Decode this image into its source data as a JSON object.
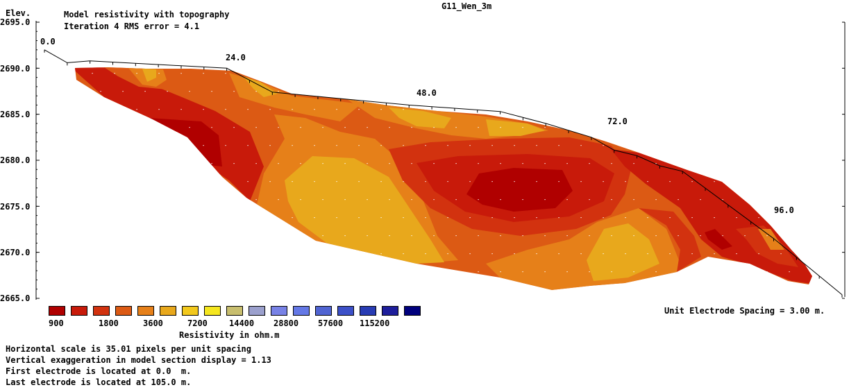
{
  "header": {
    "elev_label": "Elev.",
    "title_line1": "Model resistivity with topography",
    "title_line2": "Iteration 4 RMS error = 4.1",
    "file_name": "G11_Wen_3m"
  },
  "chart_data": {
    "type": "heatmap",
    "xlabel": "",
    "ylabel": "Elev.",
    "ylim": [
      2665.0,
      2695.0
    ],
    "y_ticks": [
      "2695.0",
      "2690.0",
      "2685.0",
      "2680.0",
      "2675.0",
      "2670.0",
      "2665.0"
    ],
    "x_distance_labels": [
      "0.0",
      "24.0",
      "48.0",
      "72.0",
      "96.0"
    ],
    "topography": [
      {
        "x": 0,
        "elev": 2692
      },
      {
        "x": 3,
        "elev": 2690.6
      },
      {
        "x": 6,
        "elev": 2690.8
      },
      {
        "x": 24,
        "elev": 2690
      },
      {
        "x": 30,
        "elev": 2687.4
      },
      {
        "x": 48,
        "elev": 2686
      },
      {
        "x": 60,
        "elev": 2685.3
      },
      {
        "x": 66,
        "elev": 2684
      },
      {
        "x": 72,
        "elev": 2682.5
      },
      {
        "x": 75,
        "elev": 2681.1
      },
      {
        "x": 78,
        "elev": 2680.5
      },
      {
        "x": 81,
        "elev": 2679.4
      },
      {
        "x": 84,
        "elev": 2678.8
      },
      {
        "x": 96,
        "elev": 2671.5
      },
      {
        "x": 105,
        "elev": 2665.4
      }
    ],
    "legend": {
      "title": "Resistivity in ohm.m",
      "tick_labels": [
        "900",
        "1800",
        "3600",
        "7200",
        "14400",
        "28800",
        "57600",
        "115200"
      ],
      "colors": [
        "#b00000",
        "#c81a0a",
        "#d2320f",
        "#dc5a14",
        "#e68019",
        "#e8a81c",
        "#f2c81c",
        "#f5e61e",
        "#c8be6e",
        "#9ba0cd",
        "#7882e6",
        "#6478e6",
        "#5064d2",
        "#3c50c8",
        "#283cb4",
        "#1e1e9b",
        "#00007d"
      ]
    },
    "electrode_spacing_note": "Unit Electrode Spacing = 3.00 m."
  },
  "footer": {
    "line1": "Horizontal scale is 35.01 pixels per unit spacing",
    "line2": "Vertical exaggeration in model section display = 1.13",
    "line3": "First electrode is located at 0.0  m.",
    "line4": "Last electrode is located at 105.0 m."
  }
}
